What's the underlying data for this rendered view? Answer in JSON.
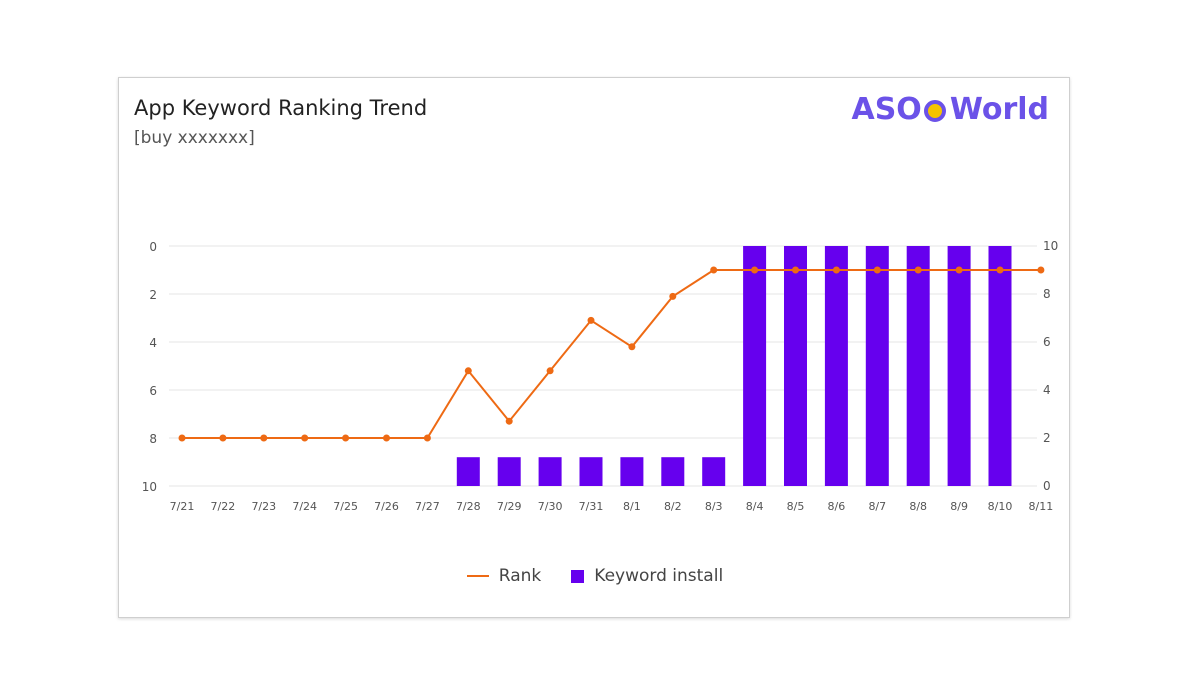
{
  "card": {
    "title": "App Keyword Ranking Trend",
    "subtitle": "[buy xxxxxxx]",
    "logo_text": "ASOWorld",
    "logo_part1": "ASO",
    "logo_part2": "World"
  },
  "colors": {
    "rank": "#ee6a14",
    "install": "#6600ee",
    "grid": "#e6e6e6",
    "axis_text": "#555555"
  },
  "chart_data": {
    "type": "bar",
    "title": "App Keyword Ranking Trend",
    "subtitle": "[buy xxxxxxx]",
    "categories": [
      "7/21",
      "7/22",
      "7/23",
      "7/24",
      "7/25",
      "7/26",
      "7/27",
      "7/28",
      "7/29",
      "7/30",
      "7/31",
      "8/1",
      "8/2",
      "8/3",
      "8/4",
      "8/5",
      "8/6",
      "8/7",
      "8/8",
      "8/9",
      "8/10",
      "8/11"
    ],
    "left_axis": {
      "ticks": [
        "0",
        "2",
        "4",
        "6",
        "8",
        "10"
      ],
      "range": [
        0,
        10
      ],
      "inverted": true
    },
    "right_axis": {
      "ticks": [
        "0",
        "2",
        "4",
        "6",
        "8",
        "10"
      ],
      "range": [
        0,
        10
      ]
    },
    "series": [
      {
        "name": "Rank",
        "type": "line",
        "axis": "left",
        "values": [
          8,
          8,
          8,
          8,
          8,
          8,
          8,
          5.2,
          7.3,
          5.2,
          3.1,
          4.2,
          2.1,
          1,
          1,
          1,
          1,
          1,
          1,
          1,
          1,
          1
        ]
      },
      {
        "name": "Keyword install",
        "type": "bar",
        "axis": "right",
        "values": [
          null,
          null,
          null,
          null,
          null,
          null,
          null,
          1.2,
          1.2,
          1.2,
          1.2,
          1.2,
          1.2,
          1.2,
          10,
          10,
          10,
          10,
          10,
          10,
          10,
          null
        ]
      }
    ],
    "grid": true,
    "legend": "bottom-center"
  }
}
